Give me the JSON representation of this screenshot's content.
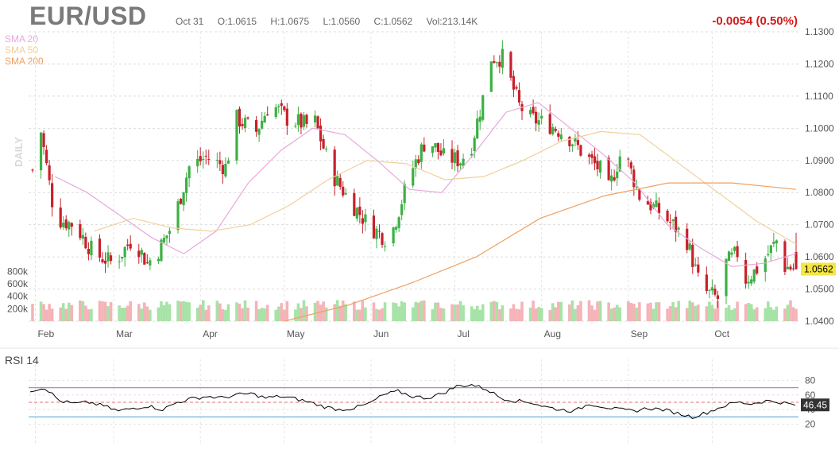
{
  "header": {
    "symbol": "EUR/USD",
    "date": "Oct 31",
    "open": "O:1.0615",
    "high": "H:1.0675",
    "low": "L:1.0560",
    "close": "C:1.0562",
    "volume": "Vol:213.14K",
    "change": "-0.0054 (0.50%)"
  },
  "legend": [
    {
      "label": "SMA 20",
      "color": "#e8a8dc"
    },
    {
      "label": "SMA 50",
      "color": "#f0d09a"
    },
    {
      "label": "SMA 200",
      "color": "#eea060"
    }
  ],
  "colors": {
    "up": "#3cb043",
    "down": "#c8202a",
    "vol_up": "#a6e3a6",
    "vol_down": "#f5b3b8",
    "last_price_bg": "#f5e642",
    "rsi_line": "#000000",
    "rsi_upper": "#c080c8",
    "rsi_lower": "#6fb5d6",
    "rsi_mid": "#e07070"
  },
  "chart_data": [
    {
      "type": "candlestick",
      "title": "EUR/USD",
      "timeframe_label": "DAILY",
      "x_months": [
        "Feb",
        "Mar",
        "Apr",
        "May",
        "Jun",
        "Jul",
        "Aug",
        "Sep",
        "Oct"
      ],
      "y_ticks": [
        "1.1300",
        "1.1200",
        "1.1100",
        "1.1000",
        "1.0900",
        "1.0800",
        "1.0700",
        "1.0600",
        "1.0500",
        "1.0400"
      ],
      "ylim": [
        1.04,
        1.13
      ],
      "last_price": "1.0562",
      "volume_ticks": [
        "800k",
        "600k",
        "400k",
        "200k"
      ],
      "volume_ylim": [
        0,
        800
      ],
      "approx_close_path": [
        {
          "date": "Jan 31",
          "close": 1.087
        },
        {
          "date": "Feb 3",
          "close": 1.099
        },
        {
          "date": "Feb 8",
          "close": 1.072
        },
        {
          "date": "Feb 15",
          "close": 1.07
        },
        {
          "date": "Feb 22",
          "close": 1.061
        },
        {
          "date": "Mar 1",
          "close": 1.058
        },
        {
          "date": "Mar 8",
          "close": 1.066
        },
        {
          "date": "Mar 13",
          "close": 1.058
        },
        {
          "date": "Mar 17",
          "close": 1.062
        },
        {
          "date": "Mar 22",
          "close": 1.07
        },
        {
          "date": "Mar 28",
          "close": 1.088
        },
        {
          "date": "Apr 3",
          "close": 1.091
        },
        {
          "date": "Apr 10",
          "close": 1.088
        },
        {
          "date": "Apr 14",
          "close": 1.103
        },
        {
          "date": "Apr 21",
          "close": 1.099
        },
        {
          "date": "Apr 26",
          "close": 1.108
        },
        {
          "date": "May 2",
          "close": 1.103
        },
        {
          "date": "May 9",
          "close": 1.101
        },
        {
          "date": "May 12",
          "close": 1.102
        },
        {
          "date": "May 18",
          "close": 1.086
        },
        {
          "date": "May 24",
          "close": 1.078
        },
        {
          "date": "May 31",
          "close": 1.07
        },
        {
          "date": "Jun 6",
          "close": 1.066
        },
        {
          "date": "Jun 9",
          "close": 1.069
        },
        {
          "date": "Jun 15",
          "close": 1.086
        },
        {
          "date": "Jun 21",
          "close": 1.097
        },
        {
          "date": "Jun 27",
          "close": 1.091
        },
        {
          "date": "Jul 3",
          "close": 1.09
        },
        {
          "date": "Jul 7",
          "close": 1.095
        },
        {
          "date": "Jul 12",
          "close": 1.113
        },
        {
          "date": "Jul 14",
          "close": 1.122
        },
        {
          "date": "Jul 18",
          "close": 1.122
        },
        {
          "date": "Jul 24",
          "close": 1.107
        },
        {
          "date": "Jul 28",
          "close": 1.103
        },
        {
          "date": "Aug 4",
          "close": 1.101
        },
        {
          "date": "Aug 10",
          "close": 1.098
        },
        {
          "date": "Aug 16",
          "close": 1.092
        },
        {
          "date": "Aug 22",
          "close": 1.087
        },
        {
          "date": "Aug 25",
          "close": 1.081
        },
        {
          "date": "Aug 30",
          "close": 1.094
        },
        {
          "date": "Sep 5",
          "close": 1.079
        },
        {
          "date": "Sep 12",
          "close": 1.074
        },
        {
          "date": "Sep 18",
          "close": 1.069
        },
        {
          "date": "Sep 22",
          "close": 1.065
        },
        {
          "date": "Sep 27",
          "close": 1.05
        },
        {
          "date": "Oct 3",
          "close": 1.047
        },
        {
          "date": "Oct 6",
          "close": 1.058
        },
        {
          "date": "Oct 11",
          "close": 1.062
        },
        {
          "date": "Oct 13",
          "close": 1.053
        },
        {
          "date": "Oct 18",
          "close": 1.057
        },
        {
          "date": "Oct 24",
          "close": 1.065
        },
        {
          "date": "Oct 27",
          "close": 1.057
        },
        {
          "date": "Oct 31",
          "close": 1.0562
        }
      ],
      "sma_approx": {
        "SMA 20": [
          1.085,
          1.08,
          1.073,
          1.066,
          1.061,
          1.068,
          1.083,
          1.093,
          1.1,
          1.098,
          1.09,
          1.081,
          1.08,
          1.092,
          1.105,
          1.108,
          1.1,
          1.092,
          1.083,
          1.07,
          1.063,
          1.057,
          1.058,
          1.061
        ],
        "SMA 50": [
          1.068,
          1.072,
          1.069,
          1.068,
          1.07,
          1.076,
          1.084,
          1.09,
          1.089,
          1.084,
          1.085,
          1.09,
          1.096,
          1.099,
          1.098,
          1.089,
          1.08,
          1.071,
          1.064
        ],
        "SMA 200": [
          1.04,
          1.045,
          1.052,
          1.06,
          1.072,
          1.079,
          1.083,
          1.083,
          1.081
        ]
      }
    },
    {
      "type": "line",
      "title": "RSI 14",
      "y_ticks": [
        "80",
        "60",
        "40",
        "20"
      ],
      "ylim": [
        0,
        100
      ],
      "upper_band": 70,
      "mid_band": 50,
      "lower_band": 30,
      "last_value": "46.45",
      "approx_path": [
        66,
        70,
        52,
        48,
        50,
        45,
        38,
        42,
        45,
        40,
        50,
        55,
        58,
        56,
        60,
        62,
        56,
        58,
        55,
        50,
        44,
        40,
        42,
        48,
        60,
        65,
        58,
        56,
        62,
        72,
        74,
        68,
        56,
        52,
        50,
        44,
        40,
        38,
        48,
        44,
        40,
        38,
        42,
        40,
        35,
        30,
        36,
        44,
        50,
        48,
        52,
        50,
        46
      ]
    }
  ]
}
